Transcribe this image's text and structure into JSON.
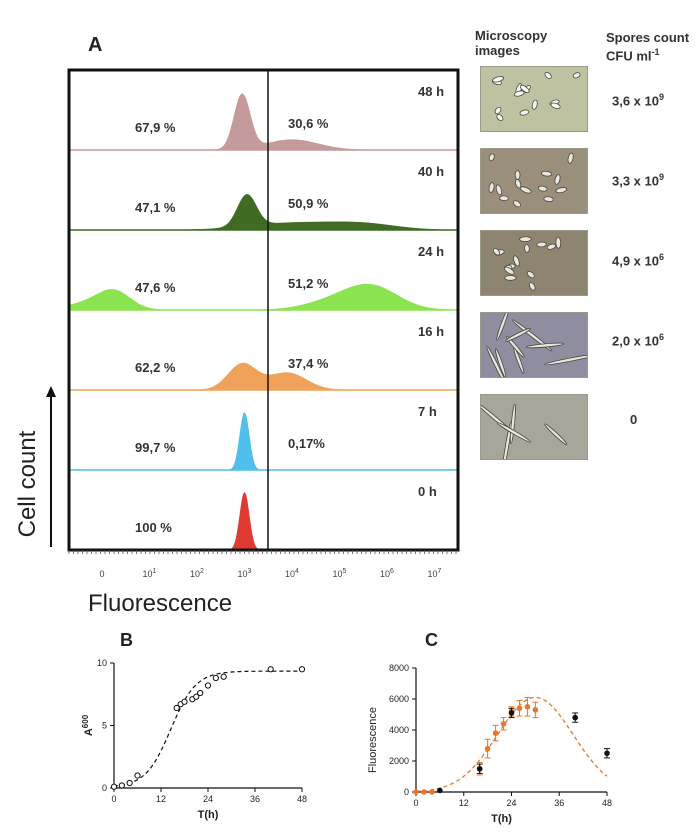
{
  "panel_a": {
    "label": "A",
    "microscopy_header": [
      "Microscopy",
      "images"
    ],
    "spores_header": [
      "Spores count",
      "CFU ml"
    ],
    "spores_header_exp": "-1",
    "x_axis_label": "Fluorescence",
    "y_axis_label": "Cell count",
    "x_ticks": [
      "0",
      "10",
      "10",
      "10",
      "10",
      "10",
      "10",
      "10"
    ],
    "x_tick_exps": [
      "",
      "1",
      "2",
      "3",
      "4",
      "5",
      "6",
      "7"
    ],
    "rows": [
      {
        "time": "48 h",
        "left": "67,9 %",
        "right": "30,6 %",
        "color": "#c49a9a",
        "spores_base": "3,6 x 10",
        "spores_exp": "9",
        "micro_tint": "#bfc2a0"
      },
      {
        "time": "40 h",
        "left": "47,1 %",
        "right": "50,9 %",
        "color": "#3f6b22",
        "spores_base": "3,3 x 10",
        "spores_exp": "9",
        "micro_tint": "#9a8f7a"
      },
      {
        "time": "24 h",
        "left": "47,6 %",
        "right": "51,2 %",
        "color": "#8be34f",
        "spores_base": "4,9 x 10",
        "spores_exp": "6",
        "micro_tint": "#8d8570"
      },
      {
        "time": "16 h",
        "left": "62,2 %",
        "right": "37,4 %",
        "color": "#f0a25a",
        "spores_base": "2,0 x 10",
        "spores_exp": "6",
        "micro_tint": "#8e8ea0"
      },
      {
        "time": "7 h",
        "left": "99,7 %",
        "right": "0,17%",
        "color": "#4fbfec",
        "spores_base": "0",
        "spores_exp": "",
        "micro_tint": "#a8a59a"
      },
      {
        "time": "0 h",
        "left": "100 %",
        "right": "",
        "color": "#e03b32",
        "spores_base": "",
        "spores_exp": "",
        "micro_tint": ""
      }
    ]
  },
  "chart_data": [
    {
      "type": "scatter",
      "panel": "B",
      "xlabel": "T(h)",
      "ylabel": "A600",
      "xlim": [
        0,
        48
      ],
      "ylim": [
        0,
        10
      ],
      "x_ticks": [
        0,
        12,
        24,
        36,
        48
      ],
      "y_ticks": [
        0,
        5,
        10
      ],
      "points": [
        [
          0,
          0.1
        ],
        [
          2,
          0.2
        ],
        [
          4,
          0.4
        ],
        [
          6,
          1.0
        ],
        [
          16,
          6.4
        ],
        [
          17,
          6.7
        ],
        [
          18,
          6.9
        ],
        [
          20,
          7.1
        ],
        [
          21,
          7.3
        ],
        [
          22,
          7.6
        ],
        [
          24,
          8.2
        ],
        [
          26,
          8.8
        ],
        [
          28,
          8.9
        ],
        [
          40,
          9.5
        ],
        [
          48,
          9.5
        ]
      ],
      "fit": "sigmoid, dashed"
    },
    {
      "type": "scatter",
      "panel": "C",
      "xlabel": "T(h)",
      "ylabel": "Fluorescence",
      "xlim": [
        0,
        48
      ],
      "ylim": [
        0,
        8000
      ],
      "x_ticks": [
        0,
        12,
        24,
        36,
        48
      ],
      "y_ticks": [
        0,
        2000,
        4000,
        6000,
        8000
      ],
      "series": [
        {
          "color": "#e8762d",
          "points": [
            [
              0,
              0
            ],
            [
              2,
              0
            ],
            [
              4,
              0
            ],
            [
              16,
              1500
            ],
            [
              18,
              2800
            ],
            [
              20,
              3800
            ],
            [
              22,
              4400
            ],
            [
              24,
              5200
            ],
            [
              26,
              5400
            ],
            [
              28,
              5500
            ],
            [
              30,
              5300
            ]
          ],
          "errors": [
            0,
            0,
            0,
            400,
            600,
            500,
            400,
            300,
            500,
            600,
            500
          ]
        },
        {
          "color": "#111111",
          "points": [
            [
              6,
              100
            ],
            [
              16,
              1500
            ],
            [
              24,
              5100
            ],
            [
              40,
              4800
            ],
            [
              48,
              2500
            ]
          ],
          "errors": [
            0,
            300,
            300,
            300,
            300
          ]
        }
      ],
      "fit": "gaussian, dashed orange"
    }
  ],
  "panel_b_label": "B",
  "panel_c_label": "C"
}
